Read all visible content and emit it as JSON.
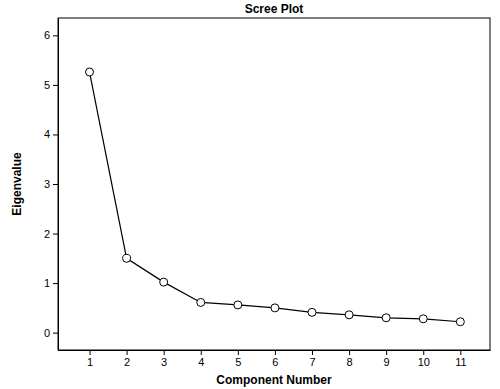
{
  "chart_data": {
    "type": "line",
    "title": "Scree Plot",
    "x_label": "Component Number",
    "y_label": "Eigenvalue",
    "x": [
      1,
      2,
      3,
      4,
      5,
      6,
      7,
      8,
      9,
      10,
      11
    ],
    "values": [
      5.26,
      1.5,
      1.02,
      0.61,
      0.56,
      0.5,
      0.41,
      0.36,
      0.3,
      0.28,
      0.22
    ],
    "color": "#000000",
    "marker": "circle",
    "grid": false,
    "xlim": [
      0.15,
      11.8
    ],
    "xticks": [
      1,
      2,
      3,
      4,
      5,
      6,
      7,
      8,
      9,
      10,
      11
    ],
    "ylim": [
      -0.35,
      6.35
    ],
    "yticks": [
      0,
      1,
      2,
      3,
      4,
      5,
      6
    ]
  }
}
